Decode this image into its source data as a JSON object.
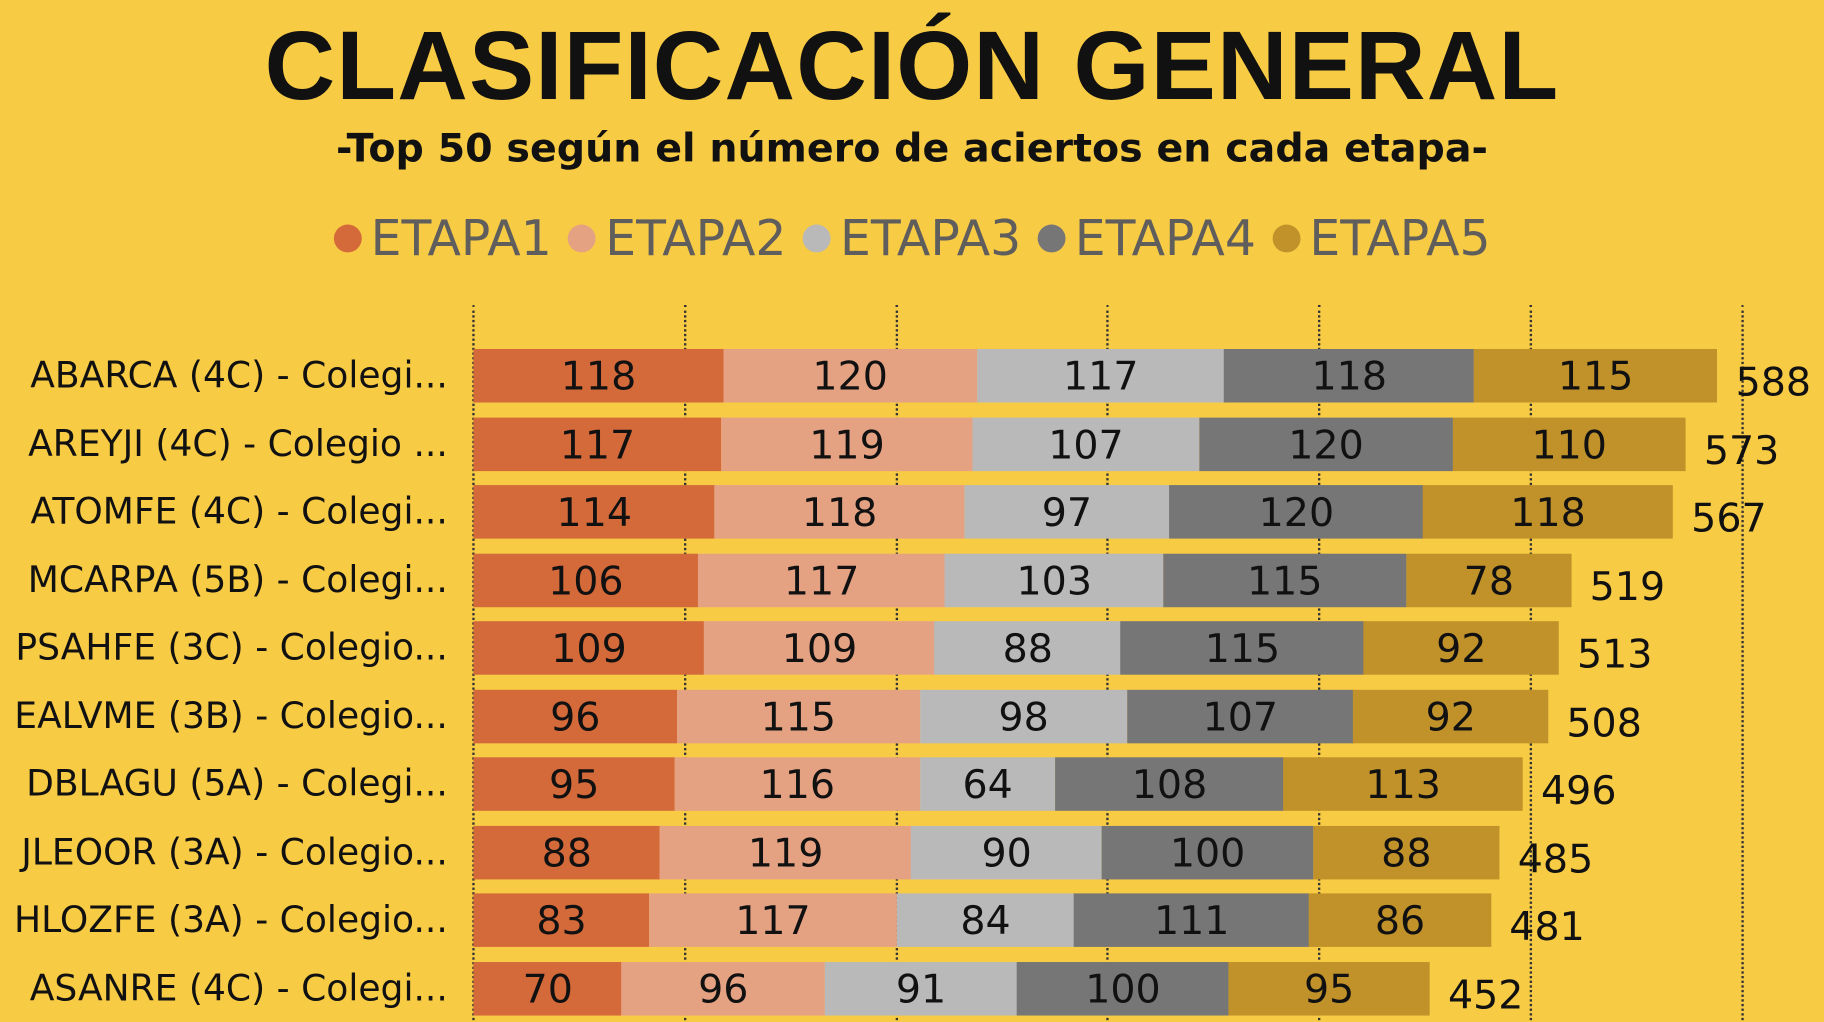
{
  "title": "CLASIFICACIÓN GENERAL",
  "subtitle": "-Top 50 según el número de aciertos en cada etapa-",
  "chart_data": {
    "type": "bar",
    "orientation": "horizontal",
    "stacked": true,
    "title": "CLASIFICACIÓN GENERAL",
    "subtitle": "-Top 50 según el número de aciertos en cada etapa-",
    "legend_position": "top",
    "xlim": [
      0,
      600
    ],
    "x_grid_step": 100,
    "grid": true,
    "categories": [
      "ABARCA (4C) - Colegi...",
      "AREYJI (4C) - Colegio ...",
      "ATOMFE (4C) - Colegi...",
      "MCARPA (5B) - Colegi...",
      "PSAHFE (3C) - Colegio...",
      "EALVME (3B) - Colegio...",
      "DBLAGU (5A) - Colegi...",
      "JLEOOR (3A) - Colegio...",
      "HLOZFE (3A) - Colegio...",
      "ASANRE (4C) - Colegi..."
    ],
    "series": [
      {
        "name": "ETAPA1",
        "color": "#D4693A",
        "values": [
          118,
          117,
          114,
          106,
          109,
          96,
          95,
          88,
          83,
          70
        ]
      },
      {
        "name": "ETAPA2",
        "color": "#E5A283",
        "values": [
          120,
          119,
          118,
          117,
          109,
          115,
          116,
          119,
          117,
          96
        ]
      },
      {
        "name": "ETAPA3",
        "color": "#B9B9B9",
        "values": [
          117,
          107,
          97,
          103,
          88,
          98,
          64,
          90,
          84,
          91
        ]
      },
      {
        "name": "ETAPA4",
        "color": "#767676",
        "values": [
          118,
          120,
          120,
          115,
          115,
          107,
          108,
          100,
          111,
          100
        ]
      },
      {
        "name": "ETAPA5",
        "color": "#C1922A",
        "values": [
          115,
          110,
          118,
          78,
          92,
          92,
          113,
          88,
          86,
          95
        ]
      }
    ],
    "totals": [
      588,
      573,
      567,
      519,
      513,
      508,
      496,
      485,
      481,
      452
    ]
  }
}
